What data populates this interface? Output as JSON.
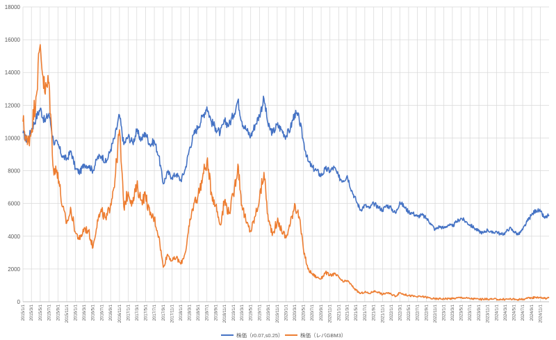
{
  "chart_data": {
    "type": "line",
    "title": "",
    "xlabel": "",
    "ylabel": "",
    "ylim": [
      0,
      18000
    ],
    "y_ticks": [
      0,
      2000,
      4000,
      6000,
      8000,
      10000,
      12000,
      14000,
      16000,
      18000
    ],
    "xlim": [
      "2015-01-01",
      "2024-12-31"
    ],
    "x_tick_labels": [
      "2015/1/1",
      "2015/3/1",
      "2015/5/1",
      "2015/7/1",
      "2015/9/1",
      "2015/11/1",
      "2016/1/1",
      "2016/3/1",
      "2016/5/1",
      "2016/7/1",
      "2016/9/1",
      "2016/11/1",
      "2017/1/1",
      "2017/3/1",
      "2017/5/1",
      "2017/7/1",
      "2017/9/1",
      "2017/11/1",
      "2018/1/1",
      "2018/3/1",
      "2018/5/1",
      "2018/7/1",
      "2018/9/1",
      "2018/11/1",
      "2019/1/1",
      "2019/3/1",
      "2019/5/1",
      "2019/7/1",
      "2019/9/1",
      "2019/11/1",
      "2020/1/1",
      "2020/3/1",
      "2020/5/1",
      "2020/7/1",
      "2020/9/1",
      "2020/11/1",
      "2021/1/1",
      "2021/3/1",
      "2021/5/1",
      "2021/7/1",
      "2021/9/1",
      "2021/11/1",
      "2022/1/1",
      "2022/3/1",
      "2022/5/1",
      "2022/7/1",
      "2022/9/1",
      "2022/11/1",
      "2023/1/1",
      "2023/3/1",
      "2023/5/1",
      "2023/7/1",
      "2023/9/1",
      "2023/11/1",
      "2024/1/1",
      "2024/3/1",
      "2024/5/1",
      "2024/7/1",
      "2024/9/1",
      "2024/11/1"
    ],
    "grid": true,
    "legend_position": "bottom",
    "series": [
      {
        "name": "株価（r0.07,s0.25）",
        "color": "#4472c4",
        "points": [
          [
            "2015-01-01",
            10300
          ],
          [
            "2015-02-01",
            9800
          ],
          [
            "2015-03-01",
            10500
          ],
          [
            "2015-04-01",
            11200
          ],
          [
            "2015-05-01",
            11800
          ],
          [
            "2015-06-01",
            11000
          ],
          [
            "2015-07-01",
            11500
          ],
          [
            "2015-08-01",
            9800
          ],
          [
            "2015-09-01",
            9600
          ],
          [
            "2015-10-01",
            8900
          ],
          [
            "2015-11-01",
            8700
          ],
          [
            "2015-12-01",
            9200
          ],
          [
            "2016-01-01",
            8100
          ],
          [
            "2016-02-01",
            7900
          ],
          [
            "2016-03-01",
            8400
          ],
          [
            "2016-04-01",
            8300
          ],
          [
            "2016-05-01",
            8000
          ],
          [
            "2016-06-01",
            8800
          ],
          [
            "2016-07-01",
            8900
          ],
          [
            "2016-08-01",
            8500
          ],
          [
            "2016-09-01",
            9300
          ],
          [
            "2016-10-01",
            10100
          ],
          [
            "2016-11-01",
            11400
          ],
          [
            "2016-12-01",
            9600
          ],
          [
            "2017-01-01",
            10100
          ],
          [
            "2017-02-01",
            9700
          ],
          [
            "2017-03-01",
            10400
          ],
          [
            "2017-04-01",
            9900
          ],
          [
            "2017-05-01",
            10300
          ],
          [
            "2017-06-01",
            9600
          ],
          [
            "2017-07-01",
            9800
          ],
          [
            "2017-08-01",
            8900
          ],
          [
            "2017-09-01",
            7200
          ],
          [
            "2017-10-01",
            7900
          ],
          [
            "2017-11-01",
            7600
          ],
          [
            "2017-12-01",
            7800
          ],
          [
            "2018-01-01",
            7400
          ],
          [
            "2018-02-01",
            8100
          ],
          [
            "2018-03-01",
            9300
          ],
          [
            "2018-04-01",
            10200
          ],
          [
            "2018-05-01",
            10700
          ],
          [
            "2018-06-01",
            11300
          ],
          [
            "2018-07-01",
            11900
          ],
          [
            "2018-08-01",
            11000
          ],
          [
            "2018-09-01",
            10600
          ],
          [
            "2018-10-01",
            10300
          ],
          [
            "2018-11-01",
            11000
          ],
          [
            "2018-12-01",
            10800
          ],
          [
            "2019-01-01",
            11400
          ],
          [
            "2019-02-01",
            12300
          ],
          [
            "2019-03-01",
            11000
          ],
          [
            "2019-04-01",
            10500
          ],
          [
            "2019-05-01",
            10100
          ],
          [
            "2019-06-01",
            10800
          ],
          [
            "2019-07-01",
            11400
          ],
          [
            "2019-08-01",
            12400
          ],
          [
            "2019-09-01",
            10700
          ],
          [
            "2019-10-01",
            10300
          ],
          [
            "2019-11-01",
            10800
          ],
          [
            "2019-12-01",
            10500
          ],
          [
            "2020-01-01",
            10100
          ],
          [
            "2020-02-01",
            10600
          ],
          [
            "2020-03-01",
            11500
          ],
          [
            "2020-04-01",
            11200
          ],
          [
            "2020-05-01",
            9800
          ],
          [
            "2020-06-01",
            8600
          ],
          [
            "2020-07-01",
            8200
          ],
          [
            "2020-08-01",
            8000
          ],
          [
            "2020-09-01",
            7700
          ],
          [
            "2020-10-01",
            8100
          ],
          [
            "2020-11-01",
            8000
          ],
          [
            "2020-12-01",
            8200
          ],
          [
            "2021-01-01",
            7600
          ],
          [
            "2021-02-01",
            7400
          ],
          [
            "2021-03-01",
            7700
          ],
          [
            "2021-04-01",
            6800
          ],
          [
            "2021-05-01",
            6200
          ],
          [
            "2021-06-01",
            5600
          ],
          [
            "2021-07-01",
            5900
          ],
          [
            "2021-08-01",
            5700
          ],
          [
            "2021-09-01",
            6000
          ],
          [
            "2021-10-01",
            5800
          ],
          [
            "2021-11-01",
            5600
          ],
          [
            "2021-12-01",
            5900
          ],
          [
            "2022-01-01",
            5700
          ],
          [
            "2022-02-01",
            5400
          ],
          [
            "2022-03-01",
            6100
          ],
          [
            "2022-04-01",
            5800
          ],
          [
            "2022-05-01",
            5500
          ],
          [
            "2022-06-01",
            5400
          ],
          [
            "2022-07-01",
            5200
          ],
          [
            "2022-08-01",
            5300
          ],
          [
            "2022-09-01",
            5100
          ],
          [
            "2022-10-01",
            4800
          ],
          [
            "2022-11-01",
            4400
          ],
          [
            "2022-12-01",
            4600
          ],
          [
            "2023-01-01",
            4500
          ],
          [
            "2023-02-01",
            4700
          ],
          [
            "2023-03-01",
            4600
          ],
          [
            "2023-04-01",
            4900
          ],
          [
            "2023-05-01",
            5100
          ],
          [
            "2023-06-01",
            4900
          ],
          [
            "2023-07-01",
            4700
          ],
          [
            "2023-08-01",
            4500
          ],
          [
            "2023-09-01",
            4300
          ],
          [
            "2023-10-01",
            4200
          ],
          [
            "2023-11-01",
            4400
          ],
          [
            "2023-12-01",
            4200
          ],
          [
            "2024-01-01",
            4300
          ],
          [
            "2024-02-01",
            4100
          ],
          [
            "2024-03-01",
            4200
          ],
          [
            "2024-04-01",
            4500
          ],
          [
            "2024-05-01",
            4300
          ],
          [
            "2024-06-01",
            4100
          ],
          [
            "2024-07-01",
            4400
          ],
          [
            "2024-08-01",
            4900
          ],
          [
            "2024-09-01",
            5300
          ],
          [
            "2024-10-01",
            5600
          ],
          [
            "2024-11-01",
            5500
          ],
          [
            "2024-12-01",
            5100
          ],
          [
            "2024-12-31",
            5300
          ]
        ]
      },
      {
        "name": "株価（レバGBM3）",
        "color": "#ed7d31",
        "points": [
          [
            "2015-01-01",
            11000
          ],
          [
            "2015-02-01",
            9600
          ],
          [
            "2015-03-01",
            10500
          ],
          [
            "2015-04-01",
            12500
          ],
          [
            "2015-05-01",
            15700
          ],
          [
            "2015-06-01",
            12800
          ],
          [
            "2015-07-01",
            13400
          ],
          [
            "2015-08-01",
            8100
          ],
          [
            "2015-09-01",
            7900
          ],
          [
            "2015-10-01",
            5800
          ],
          [
            "2015-11-01",
            4800
          ],
          [
            "2015-12-01",
            5600
          ],
          [
            "2016-01-01",
            4200
          ],
          [
            "2016-02-01",
            3800
          ],
          [
            "2016-03-01",
            4500
          ],
          [
            "2016-04-01",
            4300
          ],
          [
            "2016-05-01",
            3300
          ],
          [
            "2016-06-01",
            5000
          ],
          [
            "2016-07-01",
            5500
          ],
          [
            "2016-08-01",
            5000
          ],
          [
            "2016-09-01",
            6000
          ],
          [
            "2016-10-01",
            7500
          ],
          [
            "2016-11-01",
            10500
          ],
          [
            "2016-12-01",
            5800
          ],
          [
            "2017-01-01",
            6700
          ],
          [
            "2017-02-01",
            6000
          ],
          [
            "2017-03-01",
            7100
          ],
          [
            "2017-04-01",
            6200
          ],
          [
            "2017-05-01",
            6500
          ],
          [
            "2017-06-01",
            5300
          ],
          [
            "2017-07-01",
            5100
          ],
          [
            "2017-08-01",
            4000
          ],
          [
            "2017-09-01",
            2100
          ],
          [
            "2017-10-01",
            2900
          ],
          [
            "2017-11-01",
            2500
          ],
          [
            "2017-12-01",
            2700
          ],
          [
            "2018-01-01",
            2300
          ],
          [
            "2018-02-01",
            3000
          ],
          [
            "2018-03-01",
            4600
          ],
          [
            "2018-04-01",
            6000
          ],
          [
            "2018-05-01",
            6500
          ],
          [
            "2018-06-01",
            7600
          ],
          [
            "2018-07-01",
            8600
          ],
          [
            "2018-08-01",
            6700
          ],
          [
            "2018-09-01",
            5900
          ],
          [
            "2018-10-01",
            4700
          ],
          [
            "2018-11-01",
            6200
          ],
          [
            "2018-12-01",
            5400
          ],
          [
            "2019-01-01",
            6500
          ],
          [
            "2019-02-01",
            8400
          ],
          [
            "2019-03-01",
            5900
          ],
          [
            "2019-04-01",
            4800
          ],
          [
            "2019-05-01",
            4300
          ],
          [
            "2019-06-01",
            5200
          ],
          [
            "2019-07-01",
            6300
          ],
          [
            "2019-08-01",
            7900
          ],
          [
            "2019-09-01",
            4900
          ],
          [
            "2019-10-01",
            4200
          ],
          [
            "2019-11-01",
            4900
          ],
          [
            "2019-12-01",
            4400
          ],
          [
            "2020-01-01",
            3900
          ],
          [
            "2020-02-01",
            4800
          ],
          [
            "2020-03-01",
            6000
          ],
          [
            "2020-04-01",
            5200
          ],
          [
            "2020-05-01",
            3200
          ],
          [
            "2020-06-01",
            2000
          ],
          [
            "2020-07-01",
            1700
          ],
          [
            "2020-08-01",
            1500
          ],
          [
            "2020-09-01",
            1400
          ],
          [
            "2020-10-01",
            1800
          ],
          [
            "2020-11-01",
            1600
          ],
          [
            "2020-12-01",
            1700
          ],
          [
            "2021-01-01",
            1500
          ],
          [
            "2021-02-01",
            1200
          ],
          [
            "2021-03-01",
            1300
          ],
          [
            "2021-04-01",
            1000
          ],
          [
            "2021-05-01",
            700
          ],
          [
            "2021-06-01",
            500
          ],
          [
            "2021-07-01",
            600
          ],
          [
            "2021-08-01",
            500
          ],
          [
            "2021-09-01",
            650
          ],
          [
            "2021-10-01",
            600
          ],
          [
            "2021-11-01",
            450
          ],
          [
            "2021-12-01",
            550
          ],
          [
            "2022-01-01",
            450
          ],
          [
            "2022-02-01",
            350
          ],
          [
            "2022-03-01",
            550
          ],
          [
            "2022-04-01",
            450
          ],
          [
            "2022-05-01",
            380
          ],
          [
            "2022-06-01",
            350
          ],
          [
            "2022-07-01",
            300
          ],
          [
            "2022-08-01",
            320
          ],
          [
            "2022-09-01",
            280
          ],
          [
            "2022-10-01",
            220
          ],
          [
            "2022-11-01",
            170
          ],
          [
            "2022-12-01",
            190
          ],
          [
            "2023-01-01",
            180
          ],
          [
            "2023-02-01",
            200
          ],
          [
            "2023-03-01",
            190
          ],
          [
            "2023-04-01",
            230
          ],
          [
            "2023-05-01",
            260
          ],
          [
            "2023-06-01",
            230
          ],
          [
            "2023-07-01",
            200
          ],
          [
            "2023-08-01",
            180
          ],
          [
            "2023-09-01",
            160
          ],
          [
            "2023-10-01",
            150
          ],
          [
            "2023-11-01",
            170
          ],
          [
            "2023-12-01",
            150
          ],
          [
            "2024-01-01",
            160
          ],
          [
            "2024-02-01",
            140
          ],
          [
            "2024-03-01",
            150
          ],
          [
            "2024-04-01",
            170
          ],
          [
            "2024-05-01",
            150
          ],
          [
            "2024-06-01",
            140
          ],
          [
            "2024-07-01",
            160
          ],
          [
            "2024-08-01",
            200
          ],
          [
            "2024-09-01",
            240
          ],
          [
            "2024-10-01",
            280
          ],
          [
            "2024-11-01",
            260
          ],
          [
            "2024-12-01",
            210
          ],
          [
            "2024-12-31",
            230
          ]
        ]
      }
    ]
  }
}
